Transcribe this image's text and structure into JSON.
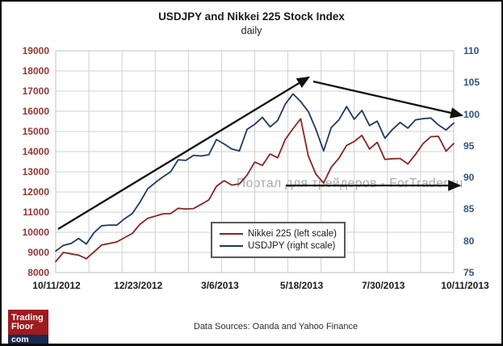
{
  "header": {
    "title": "USDJPY and Nikkei 225 Stock Index",
    "subtitle": "daily"
  },
  "watermark": "Портал для трейдеров - ForTrader.ru",
  "footer": {
    "data_sources": "Data Sources: Oanda and Yahoo Finance"
  },
  "logo": {
    "line1": "Trading",
    "line2": "Floor",
    "line3": "com",
    "red_color": "#9e1b20",
    "navy_color": "#1b2a4e"
  },
  "colors": {
    "nikkei_line": "#8b2423",
    "usdjpy_line": "#1f3864",
    "left_axis_text": "#943634",
    "right_axis_text": "#31567b",
    "grid": "#d0d0d0",
    "plot_border": "#c0c0c0",
    "arrow": "#111111"
  },
  "chart_data": {
    "type": "line",
    "title": "USDJPY and Nikkei 225 Stock Index",
    "subtitle": "daily",
    "grid": true,
    "legend_position": "inside-bottom-center",
    "x_tick_labels": [
      "10/11/2012",
      "12/23/2012",
      "3/6/2013",
      "5/18/2013",
      "7/30/2013",
      "10/11/2013"
    ],
    "left_axis": {
      "min": 8000,
      "max": 19000,
      "step": 1000,
      "applies_to": "Nikkei 225"
    },
    "right_axis": {
      "min": 75,
      "max": 110,
      "step": 5,
      "applies_to": "USDJPY"
    },
    "legend": [
      {
        "label": "Nikkei 225 (left scale)",
        "color": "#8b2423"
      },
      {
        "label": "USDJPY (right scale)",
        "color": "#1f3864"
      }
    ],
    "series": [
      {
        "name": "Nikkei 225",
        "axis": "left",
        "color": "#8b2423",
        "values": [
          8550,
          9000,
          8930,
          8870,
          8690,
          9025,
          9370,
          9445,
          9525,
          9735,
          9940,
          10395,
          10690,
          10800,
          10915,
          10925,
          11190,
          11155,
          11175,
          11385,
          11605,
          12285,
          12560,
          12340,
          12400,
          12835,
          13485,
          13315,
          13885,
          13695,
          14610,
          15140,
          15630,
          13780,
          12880,
          12445,
          13230,
          13675,
          14310,
          14505,
          14810,
          14130,
          14465,
          13615,
          13650,
          13660,
          13390,
          13860,
          14405,
          14740,
          14760,
          14025,
          14405
        ]
      },
      {
        "name": "USDJPY",
        "axis": "right",
        "color": "#1f3864",
        "values": [
          78.4,
          79.3,
          79.6,
          80.4,
          79.5,
          81.3,
          82.4,
          82.5,
          82.5,
          83.5,
          84.3,
          86.1,
          88.2,
          89.2,
          90.1,
          90.9,
          92.8,
          92.7,
          93.5,
          93.4,
          93.6,
          96.0,
          95.3,
          94.5,
          94.2,
          97.6,
          98.4,
          99.5,
          98.0,
          99.0,
          101.6,
          103.2,
          102.0,
          100.4,
          97.6,
          94.2,
          97.9,
          99.1,
          101.2,
          99.2,
          100.6,
          98.2,
          98.9,
          96.2,
          97.6,
          98.7,
          97.8,
          99.1,
          99.3,
          99.4,
          98.3,
          97.5,
          98.6
        ]
      }
    ],
    "annotations": {
      "arrows": [
        {
          "name": "uptrend-arrow",
          "x1": 0.006,
          "y1": 10160,
          "x2": 0.635,
          "y2": 17680
        },
        {
          "name": "downtrend-arrow",
          "x1": 0.647,
          "y1": 17480,
          "x2": 1.02,
          "y2": 15800
        },
        {
          "name": "sideways-arrow",
          "x1": 0.578,
          "y1": 12320,
          "x2": 1.014,
          "y2": 12320
        }
      ]
    }
  }
}
